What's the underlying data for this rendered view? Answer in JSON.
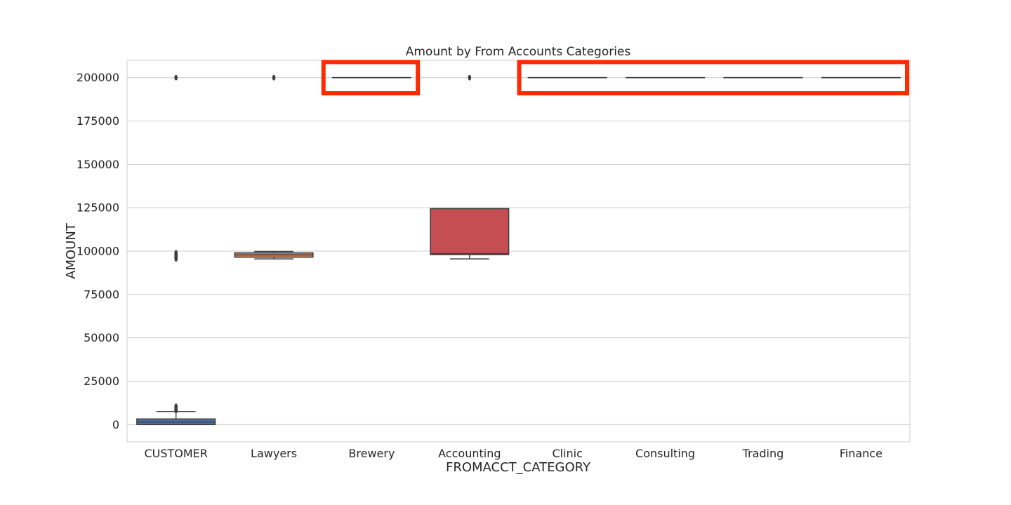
{
  "chart_data": {
    "type": "box",
    "title": "Amount by From Accounts Categories",
    "xlabel": "FROMACCT_CATEGORY",
    "ylabel": "AMOUNT",
    "ylim": [
      -10000,
      210000
    ],
    "yticks": [
      0,
      25000,
      50000,
      75000,
      100000,
      125000,
      150000,
      175000,
      200000
    ],
    "grid": "horizontal",
    "categories": [
      "CUSTOMER",
      "Lawyers",
      "Brewery",
      "Accounting",
      "Clinic",
      "Consulting",
      "Trading",
      "Finance"
    ],
    "colors": [
      "#4c72b0",
      "#dd8452",
      "#55a868",
      "#c44e52",
      "#8172b3",
      "#937860",
      "#da8bc3",
      "#8c8c8c"
    ],
    "boxes": [
      {
        "category": "CUSTOMER",
        "whisker_low": 0,
        "q1": 0,
        "median": 1500,
        "q3": 3200,
        "whisker_high": 7500,
        "outliers": [
          8000,
          8500,
          9000,
          9500,
          10000,
          10500,
          95500,
          96000,
          96500,
          97000,
          97500,
          98000,
          98500,
          99000,
          200000
        ]
      },
      {
        "category": "Lawyers",
        "whisker_low": 95500,
        "q1": 96500,
        "median": 97800,
        "q3": 99000,
        "whisker_high": 99800,
        "outliers": [
          200000
        ]
      },
      {
        "category": "Brewery",
        "whisker_low": 200000,
        "q1": 200000,
        "median": 200000,
        "q3": 200000,
        "whisker_high": 200000,
        "outliers": []
      },
      {
        "category": "Accounting",
        "whisker_low": 95500,
        "q1": 98000,
        "median": 98500,
        "q3": 124500,
        "whisker_high": 124500,
        "outliers": [
          200000
        ]
      },
      {
        "category": "Clinic",
        "whisker_low": 200000,
        "q1": 200000,
        "median": 200000,
        "q3": 200000,
        "whisker_high": 200000,
        "outliers": []
      },
      {
        "category": "Consulting",
        "whisker_low": 200000,
        "q1": 200000,
        "median": 200000,
        "q3": 200000,
        "whisker_high": 200000,
        "outliers": []
      },
      {
        "category": "Trading",
        "whisker_low": 200000,
        "q1": 200000,
        "median": 200000,
        "q3": 200000,
        "whisker_high": 200000,
        "outliers": []
      },
      {
        "category": "Finance",
        "whisker_low": 200000,
        "q1": 200000,
        "median": 200000,
        "q3": 200000,
        "whisker_high": 200000,
        "outliers": []
      }
    ],
    "highlight_boxes": [
      {
        "from_category": "Brewery",
        "to_category": "Brewery",
        "color": "#ff2a00"
      },
      {
        "from_category": "Clinic",
        "to_category": "Finance",
        "color": "#ff2a00"
      }
    ]
  }
}
